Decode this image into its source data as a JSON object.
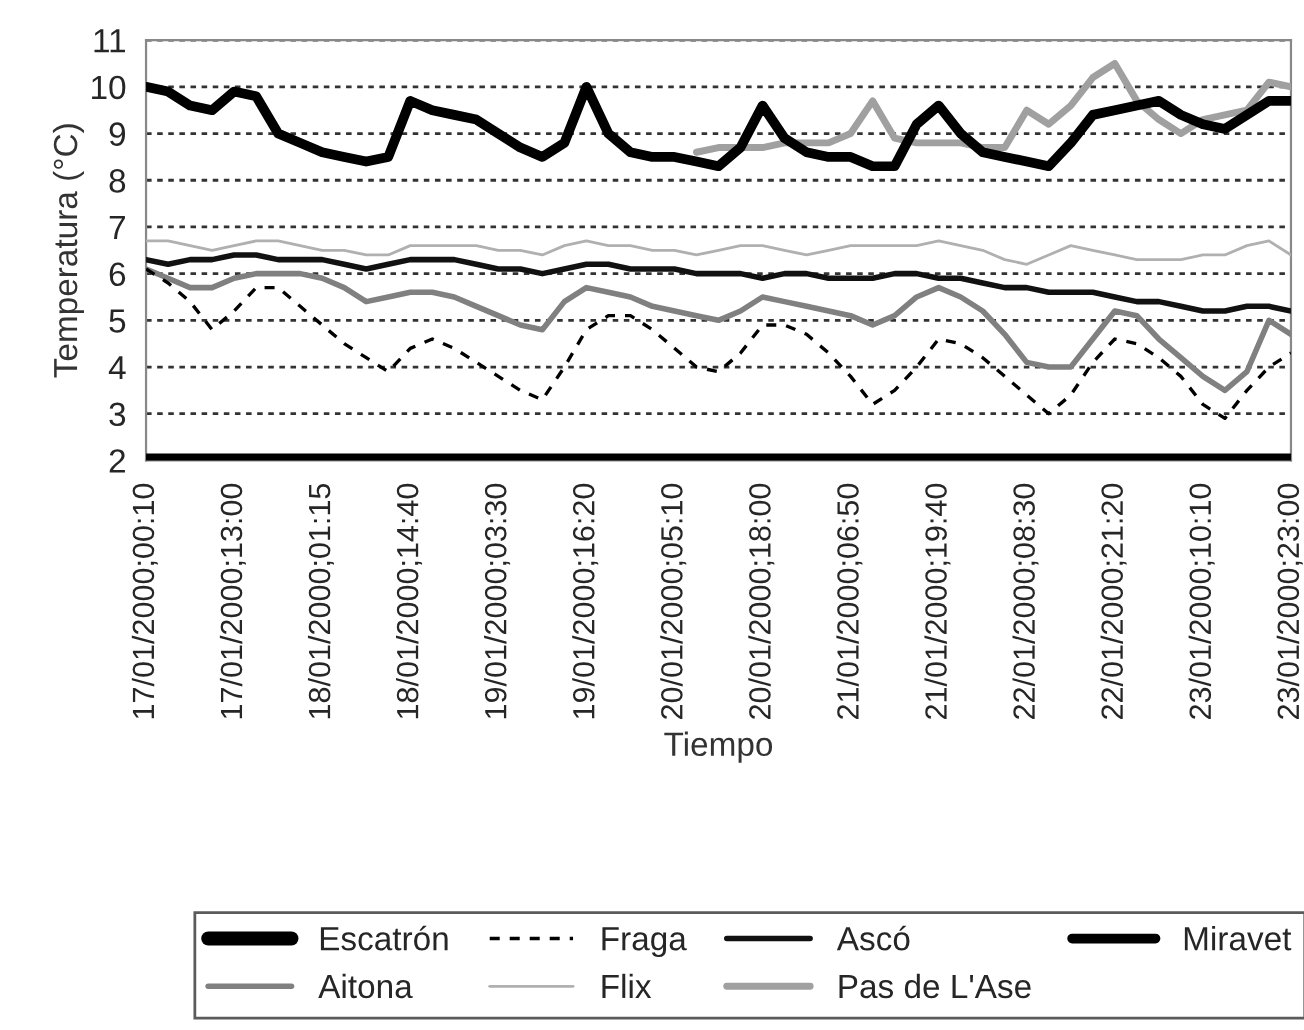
{
  "chart_data": {
    "type": "line",
    "xlabel": "Tiempo",
    "ylabel": "Temperatura (°C)",
    "categories": [
      "17/01/2000;00:10",
      null,
      null,
      null,
      "17/01/2000;13:00",
      null,
      null,
      null,
      "18/01/2000;01:15",
      null,
      null,
      null,
      "18/01/2000;14:40",
      null,
      null,
      null,
      "19/01/2000;03:30",
      null,
      null,
      null,
      "19/01/2000;16:20",
      null,
      null,
      null,
      "20/01/2000;05:10",
      null,
      null,
      null,
      "20/01/2000;18:00",
      null,
      null,
      null,
      "21/01/2000;06:50",
      null,
      null,
      null,
      "21/01/2000;19:40",
      null,
      null,
      null,
      "22/01/2000;08:30",
      null,
      null,
      null,
      "22/01/2000;21:20",
      null,
      null,
      null,
      "23/01/2000;10:10",
      null,
      null,
      null,
      "23/01/2000;23:00"
    ],
    "series": [
      {
        "name": "Escatrón",
        "color": "#000000",
        "line_style": "solid",
        "values": [
          2,
          2,
          2,
          2,
          2,
          2,
          2,
          2,
          2,
          2,
          2,
          2,
          2,
          2,
          2,
          2,
          2,
          2,
          2,
          2,
          2,
          2,
          2,
          2,
          2,
          2,
          2,
          2,
          2,
          2,
          2,
          2,
          2,
          2,
          2,
          2,
          2,
          2,
          2,
          2,
          2,
          2,
          2,
          2,
          2,
          2,
          2,
          2,
          2,
          2,
          2,
          2,
          2
        ]
      },
      {
        "name": "Aitona",
        "color": "#808080",
        "line_style": "solid",
        "values": [
          6.1,
          5.9,
          5.7,
          5.7,
          5.9,
          6.0,
          6.0,
          6.0,
          5.9,
          5.7,
          5.4,
          5.5,
          5.6,
          5.6,
          5.5,
          5.3,
          5.1,
          4.9,
          4.8,
          5.4,
          5.7,
          5.6,
          5.5,
          5.3,
          5.2,
          5.1,
          5.0,
          5.2,
          5.5,
          5.4,
          5.3,
          5.2,
          5.1,
          4.9,
          5.1,
          5.5,
          5.7,
          5.5,
          5.2,
          4.7,
          4.1,
          4.0,
          4.0,
          4.6,
          5.2,
          5.1,
          4.6,
          4.2,
          3.8,
          3.5,
          3.9,
          5.0,
          4.7
        ]
      },
      {
        "name": "Fraga",
        "color": "#000000",
        "line_style": "dashed",
        "values": [
          6.1,
          5.8,
          5.4,
          4.8,
          5.2,
          5.7,
          5.7,
          5.3,
          4.9,
          4.5,
          4.2,
          3.9,
          4.4,
          4.6,
          4.4,
          4.1,
          3.8,
          3.5,
          3.3,
          4.0,
          4.8,
          5.1,
          5.1,
          4.8,
          4.4,
          4.0,
          3.9,
          4.3,
          4.9,
          4.9,
          4.7,
          4.3,
          3.8,
          3.2,
          3.5,
          4.0,
          4.6,
          4.5,
          4.2,
          3.8,
          3.4,
          3.0,
          3.4,
          4.1,
          4.6,
          4.5,
          4.2,
          3.8,
          3.2,
          2.9,
          3.5,
          4.0,
          4.3
        ]
      },
      {
        "name": "Flix",
        "color": "#b0b0b0",
        "line_style": "solid",
        "values": [
          6.7,
          6.7,
          6.6,
          6.5,
          6.6,
          6.7,
          6.7,
          6.6,
          6.5,
          6.5,
          6.4,
          6.4,
          6.6,
          6.6,
          6.6,
          6.6,
          6.5,
          6.5,
          6.4,
          6.6,
          6.7,
          6.6,
          6.6,
          6.5,
          6.5,
          6.4,
          6.5,
          6.6,
          6.6,
          6.5,
          6.4,
          6.5,
          6.6,
          6.6,
          6.6,
          6.6,
          6.7,
          6.6,
          6.5,
          6.3,
          6.2,
          6.4,
          6.6,
          6.5,
          6.4,
          6.3,
          6.3,
          6.3,
          6.4,
          6.4,
          6.6,
          6.7,
          6.4
        ]
      },
      {
        "name": "Ascó",
        "color": "#111111",
        "line_style": "solid",
        "values": [
          6.3,
          6.2,
          6.3,
          6.3,
          6.4,
          6.4,
          6.3,
          6.3,
          6.3,
          6.2,
          6.1,
          6.2,
          6.3,
          6.3,
          6.3,
          6.2,
          6.1,
          6.1,
          6.0,
          6.1,
          6.2,
          6.2,
          6.1,
          6.1,
          6.1,
          6.0,
          6.0,
          6.0,
          5.9,
          6.0,
          6.0,
          5.9,
          5.9,
          5.9,
          6.0,
          6.0,
          5.9,
          5.9,
          5.8,
          5.7,
          5.7,
          5.6,
          5.6,
          5.6,
          5.5,
          5.4,
          5.4,
          5.3,
          5.2,
          5.2,
          5.3,
          5.3,
          5.2
        ]
      },
      {
        "name": "Pas de L'Ase",
        "color": "#a0a0a0",
        "line_style": "solid",
        "values": [
          null,
          null,
          null,
          null,
          null,
          null,
          null,
          null,
          null,
          null,
          null,
          null,
          null,
          null,
          null,
          null,
          null,
          null,
          null,
          null,
          null,
          null,
          null,
          null,
          null,
          8.6,
          8.7,
          8.7,
          8.7,
          8.8,
          8.8,
          8.8,
          9.0,
          9.7,
          8.9,
          8.8,
          8.8,
          8.8,
          8.7,
          8.7,
          9.5,
          9.2,
          9.6,
          10.2,
          10.5,
          9.7,
          9.3,
          9.0,
          9.3,
          9.4,
          9.5,
          10.1,
          10.0
        ]
      },
      {
        "name": "Miravet",
        "color": "#000000",
        "line_style": "solid",
        "values": [
          10.0,
          9.9,
          9.6,
          9.5,
          9.9,
          9.8,
          9.0,
          8.8,
          8.6,
          8.5,
          8.4,
          8.5,
          9.7,
          9.5,
          9.4,
          9.3,
          9.0,
          8.7,
          8.5,
          8.8,
          10.0,
          9.0,
          8.6,
          8.5,
          8.5,
          8.4,
          8.3,
          8.7,
          9.6,
          8.9,
          8.6,
          8.5,
          8.5,
          8.3,
          8.3,
          9.2,
          9.6,
          9.0,
          8.6,
          8.5,
          8.4,
          8.3,
          8.8,
          9.4,
          9.5,
          9.6,
          9.7,
          9.4,
          9.2,
          9.1,
          9.4,
          9.7,
          9.7
        ]
      }
    ],
    "ylim": [
      2,
      11
    ],
    "yticks": [
      2,
      3,
      4,
      5,
      6,
      7,
      8,
      9,
      10,
      11
    ],
    "grid": "y",
    "legend": "bottom"
  }
}
